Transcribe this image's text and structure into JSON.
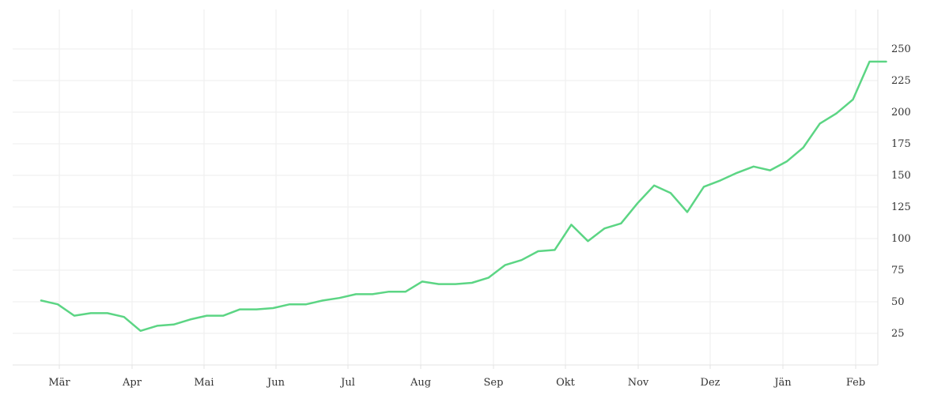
{
  "chart_data": {
    "type": "line",
    "title": "",
    "xlabel": "",
    "ylabel": "",
    "grid": true,
    "legend": "none",
    "y_axis_position": "right",
    "ylim": [
      0,
      262
    ],
    "y_ticks": [
      25,
      50,
      75,
      100,
      125,
      150,
      175,
      200,
      225,
      250
    ],
    "x_ticks": [
      "Mär",
      "Apr",
      "Mai",
      "Jun",
      "Jul",
      "Aug",
      "Sep",
      "Okt",
      "Nov",
      "Dez",
      "Jän",
      "Feb"
    ],
    "series": [
      {
        "color": "#5cd584",
        "values": [
          51,
          48,
          39,
          41,
          41,
          38,
          27,
          31,
          32,
          36,
          39,
          39,
          44,
          44,
          45,
          48,
          48,
          51,
          53,
          56,
          56,
          58,
          58,
          66,
          64,
          64,
          65,
          69,
          79,
          83,
          90,
          91,
          111,
          98,
          108,
          112,
          128,
          142,
          136,
          121,
          141,
          146,
          152,
          157,
          154,
          161,
          172,
          191,
          199,
          210,
          240,
          240
        ]
      }
    ]
  }
}
